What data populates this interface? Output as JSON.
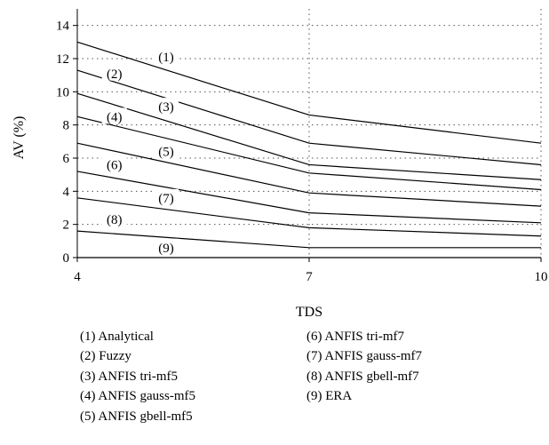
{
  "chart_data": {
    "type": "line",
    "xlabel": "TDS",
    "ylabel": "AV (%)",
    "xlim": [
      4,
      10
    ],
    "ylim": [
      0,
      15
    ],
    "x_ticks": [
      "4",
      "7",
      "10"
    ],
    "y_ticks": [
      "0",
      "2",
      "4",
      "6",
      "8",
      "10",
      "12",
      "14"
    ],
    "grid": "dotted",
    "x": [
      4,
      7,
      10
    ],
    "series": [
      {
        "name": "(1) Analytical",
        "tag": "(1)",
        "values": [
          13.0,
          8.6,
          6.9
        ]
      },
      {
        "name": "(2) Fuzzy",
        "tag": "(2)",
        "values": [
          11.3,
          6.9,
          5.6
        ]
      },
      {
        "name": "(3) ANFIS tri-mf5",
        "tag": "(3)",
        "values": [
          9.9,
          5.6,
          4.7
        ]
      },
      {
        "name": "(4) ANFIS gauss-mf5",
        "tag": "(4)",
        "values": [
          8.5,
          5.1,
          4.1
        ]
      },
      {
        "name": "(5) ANFIS gbell-mf5",
        "tag": "(5)",
        "values": [
          6.9,
          3.9,
          3.1
        ]
      },
      {
        "name": "(6) ANFIS tri-mf7",
        "tag": "(6)",
        "values": [
          5.2,
          2.7,
          2.1
        ]
      },
      {
        "name": "(7) ANFIS gauss-mf7",
        "tag": "(7)",
        "values": [
          3.6,
          1.8,
          1.3
        ]
      },
      {
        "name": "(8) ANFIS gbell-mf7",
        "tag": "(8)",
        "values": [
          1.6,
          0.6,
          0.6
        ]
      },
      {
        "name": "(9) ERA",
        "tag": "(9)",
        "values": [
          0.0,
          0.0,
          0.0
        ]
      }
    ],
    "labels": [
      {
        "text": "(1)",
        "x": 5.15,
        "y": 12.1
      },
      {
        "text": "(2)",
        "x": 4.48,
        "y": 11.1
      },
      {
        "text": "(3)",
        "x": 5.15,
        "y": 9.1
      },
      {
        "text": "(4)",
        "x": 4.48,
        "y": 8.5
      },
      {
        "text": "(5)",
        "x": 5.15,
        "y": 6.4
      },
      {
        "text": "(6)",
        "x": 4.48,
        "y": 5.6
      },
      {
        "text": "(7)",
        "x": 5.15,
        "y": 3.6
      },
      {
        "text": "(8)",
        "x": 4.48,
        "y": 2.3
      },
      {
        "text": "(9)",
        "x": 5.15,
        "y": 0.6
      }
    ],
    "legend_columns": [
      [
        "(1) Analytical",
        "(2) Fuzzy",
        "(3) ANFIS tri-mf5",
        "(4) ANFIS gauss-mf5",
        "(5) ANFIS gbell-mf5"
      ],
      [
        "(6) ANFIS tri-mf7",
        "(7) ANFIS gauss-mf7",
        "(8) ANFIS gbell-mf7",
        "(9) ERA"
      ]
    ]
  }
}
